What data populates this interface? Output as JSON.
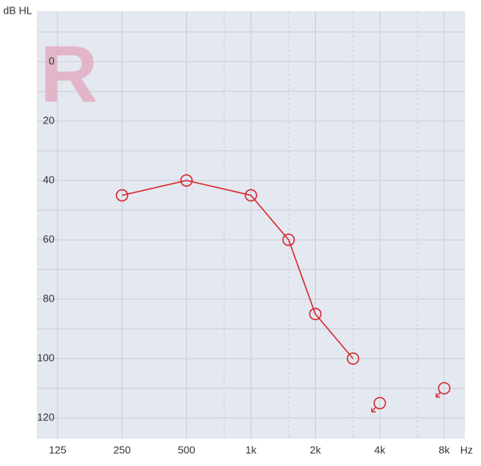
{
  "chart_data": {
    "type": "audiogram",
    "watermark": "R",
    "y_label": "dB HL",
    "x_label": "Hz",
    "x": [
      250,
      500,
      1000,
      1500,
      2000,
      3000,
      4000,
      8000
    ],
    "series": [
      {
        "color": "#d8262b",
        "values": [
          45,
          40,
          45,
          60,
          85,
          100,
          115,
          110
        ],
        "no_response": [
          false,
          false,
          false,
          false,
          false,
          false,
          true,
          true
        ]
      }
    ],
    "xlim": [
      100,
      10000
    ],
    "log_x": true,
    "xticks": [
      125,
      250,
      500,
      {
        "value": 1000,
        "label": "1k"
      },
      {
        "value": 2000,
        "label": "2k"
      },
      {
        "value": 4000,
        "label": "4k"
      },
      {
        "value": 8000,
        "label": "8k"
      }
    ],
    "xminor": [
      750,
      1500,
      3000,
      6000
    ],
    "ylim": [
      -17,
      127
    ],
    "y_inverted": true,
    "yticks": [
      0,
      20,
      40,
      60,
      80,
      100,
      120
    ],
    "yminor": [
      -10,
      10,
      30,
      50,
      70,
      90,
      110
    ],
    "grid": true
  }
}
